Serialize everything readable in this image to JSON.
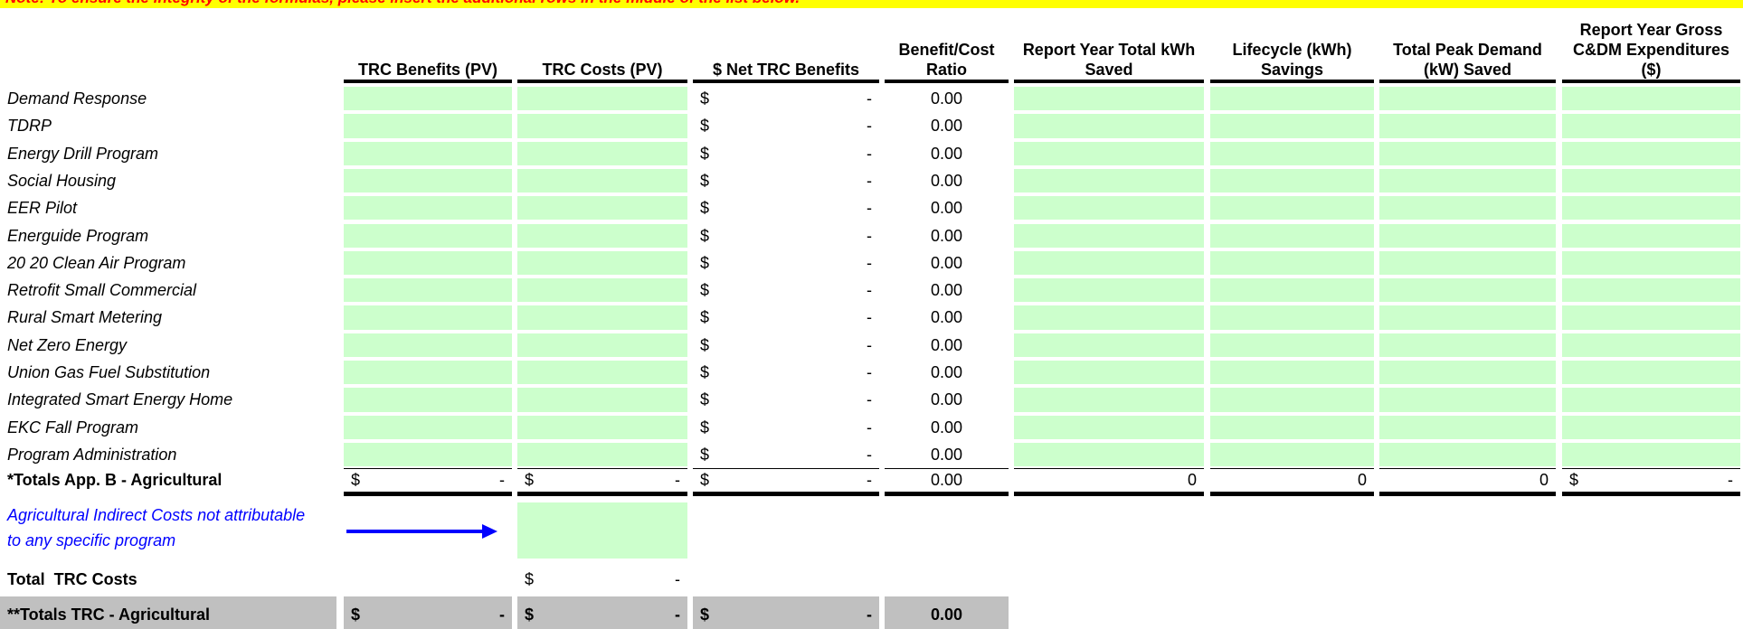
{
  "note": "Note: To ensure the integrity of the formulas, please insert the additional rows in the middle of the list below.",
  "headers": [
    "TRC Benefits (PV)",
    "TRC Costs (PV)",
    "$ Net TRC Benefits",
    "Benefit/Cost Ratio",
    "Report Year Total kWh Saved",
    "Lifecycle (kWh) Savings",
    "Total Peak Demand (kW) Saved",
    "Report Year Gross C&DM Expenditures ($)"
  ],
  "programs": [
    {
      "name": "Demand Response",
      "net_currency": "$",
      "net_value": "-",
      "ratio": "0.00"
    },
    {
      "name": "TDRP",
      "net_currency": "$",
      "net_value": "-",
      "ratio": "0.00"
    },
    {
      "name": "Energy Drill Program",
      "net_currency": "$",
      "net_value": "-",
      "ratio": "0.00"
    },
    {
      "name": "Social Housing",
      "net_currency": "$",
      "net_value": "-",
      "ratio": "0.00"
    },
    {
      "name": "EER Pilot",
      "net_currency": "$",
      "net_value": "-",
      "ratio": "0.00"
    },
    {
      "name": "Energuide Program",
      "net_currency": "$",
      "net_value": "-",
      "ratio": "0.00"
    },
    {
      "name": "20 20 Clean Air Program",
      "net_currency": "$",
      "net_value": "-",
      "ratio": "0.00"
    },
    {
      "name": "Retrofit Small Commercial",
      "net_currency": "$",
      "net_value": "-",
      "ratio": "0.00"
    },
    {
      "name": "Rural Smart Metering",
      "net_currency": "$",
      "net_value": "-",
      "ratio": "0.00"
    },
    {
      "name": "Net Zero Energy",
      "net_currency": "$",
      "net_value": "-",
      "ratio": "0.00"
    },
    {
      "name": "Union Gas Fuel Substitution",
      "net_currency": "$",
      "net_value": "-",
      "ratio": "0.00"
    },
    {
      "name": "Integrated Smart Energy Home",
      "net_currency": "$",
      "net_value": "-",
      "ratio": "0.00"
    },
    {
      "name": "EKC Fall Program",
      "net_currency": "$",
      "net_value": "-",
      "ratio": "0.00"
    },
    {
      "name": "Program Administration",
      "net_currency": "$",
      "net_value": "-",
      "ratio": "0.00"
    }
  ],
  "totals": {
    "label": "*Totals App. B - Agricultural",
    "trc_benefits": {
      "currency": "$",
      "value": "-"
    },
    "trc_costs": {
      "currency": "$",
      "value": "-"
    },
    "net": {
      "currency": "$",
      "value": "-"
    },
    "ratio": "0.00",
    "report_kwh": 0,
    "lifecycle": 0,
    "peak": 0,
    "gross": {
      "currency": "$",
      "value": "-"
    }
  },
  "indirect": {
    "label": "Agricultural Indirect Costs not attributable to any specific program"
  },
  "total_trc_costs": {
    "label": "Total  TRC Costs",
    "currency": "$",
    "value": "-"
  },
  "grand_totals": {
    "label": "**Totals TRC - Agricultural",
    "trc_benefits": {
      "currency": "$",
      "value": "-"
    },
    "trc_costs": {
      "currency": "$",
      "value": "-"
    },
    "net": {
      "currency": "$",
      "value": "-"
    },
    "ratio": "0.00"
  }
}
